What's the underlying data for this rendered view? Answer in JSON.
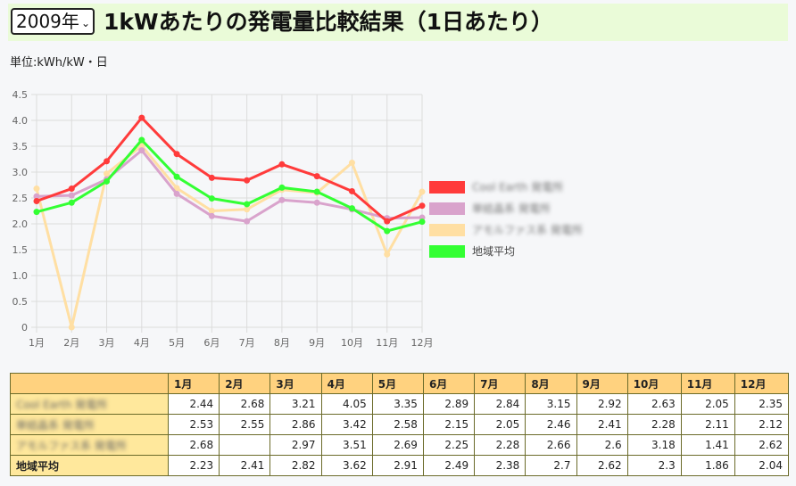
{
  "header": {
    "year_select": "2009年",
    "title": "1kWあたりの発電量比較結果（1日あたり）",
    "unit": "単位:kWh/kW・日"
  },
  "colors": {
    "header_bg": "#eafbd8",
    "table_header_bg": "#ffd27f",
    "table_rowhead_bg": "#ffe89c"
  },
  "chart_data": {
    "type": "line",
    "categories": [
      "1月",
      "2月",
      "3月",
      "4月",
      "5月",
      "6月",
      "7月",
      "8月",
      "9月",
      "10月",
      "11月",
      "12月"
    ],
    "ylim": [
      0,
      4.5
    ],
    "yticks": [
      "0",
      "0.5",
      "1.0",
      "1.5",
      "2.0",
      "2.5",
      "3.0",
      "3.5",
      "4.0",
      "4.5"
    ],
    "grid": true,
    "legend_position": "right",
    "series": [
      {
        "name": "Cool Earth 発電所",
        "legend_blurred": true,
        "color": "#ff3b3b",
        "values": [
          2.44,
          2.68,
          3.21,
          4.05,
          3.35,
          2.89,
          2.84,
          3.15,
          2.92,
          2.63,
          2.05,
          2.35
        ]
      },
      {
        "name": "単結晶系 発電所",
        "legend_blurred": true,
        "color": "#d9a3cc",
        "values": [
          2.53,
          2.55,
          2.86,
          3.42,
          2.58,
          2.15,
          2.05,
          2.46,
          2.41,
          2.28,
          2.11,
          2.12
        ]
      },
      {
        "name": "アモルファス系 発電所",
        "legend_blurred": true,
        "color": "#ffdfa3",
        "values": [
          2.68,
          0,
          2.97,
          3.51,
          2.69,
          2.25,
          2.28,
          2.66,
          2.6,
          3.18,
          1.41,
          2.62
        ]
      },
      {
        "name": "地域平均",
        "legend_blurred": false,
        "color": "#33ff33",
        "values": [
          2.23,
          2.41,
          2.82,
          3.62,
          2.91,
          2.49,
          2.38,
          2.7,
          2.62,
          2.3,
          1.86,
          2.04
        ]
      }
    ]
  },
  "table": {
    "columns": [
      "1月",
      "2月",
      "3月",
      "4月",
      "5月",
      "6月",
      "7月",
      "8月",
      "9月",
      "10月",
      "11月",
      "12月"
    ],
    "rows": [
      {
        "label": "Cool Earth 発電所",
        "blurred": true,
        "values": [
          "2.44",
          "2.68",
          "3.21",
          "4.05",
          "3.35",
          "2.89",
          "2.84",
          "3.15",
          "2.92",
          "2.63",
          "2.05",
          "2.35"
        ]
      },
      {
        "label": "単結晶系 発電所",
        "blurred": true,
        "values": [
          "2.53",
          "2.55",
          "2.86",
          "3.42",
          "2.58",
          "2.15",
          "2.05",
          "2.46",
          "2.41",
          "2.28",
          "2.11",
          "2.12"
        ]
      },
      {
        "label": "アモルファス系 発電所",
        "blurred": true,
        "values": [
          "2.68",
          "",
          "2.97",
          "3.51",
          "2.69",
          "2.25",
          "2.28",
          "2.66",
          "2.6",
          "3.18",
          "1.41",
          "2.62"
        ]
      },
      {
        "label": "地域平均",
        "blurred": false,
        "values": [
          "2.23",
          "2.41",
          "2.82",
          "3.62",
          "2.91",
          "2.49",
          "2.38",
          "2.7",
          "2.62",
          "2.3",
          "1.86",
          "2.04"
        ]
      }
    ]
  }
}
